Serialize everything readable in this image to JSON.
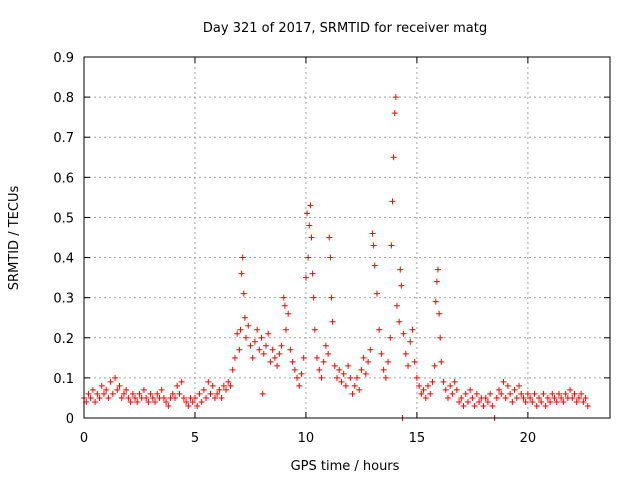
{
  "chart_data": {
    "type": "scatter",
    "title": "Day 321 of 2017, SRMTID for receiver matg",
    "xlabel": "GPS time / hours",
    "ylabel": "SRMTID / TECUs",
    "xlim": [
      0,
      23.7
    ],
    "ylim": [
      0,
      0.9
    ],
    "xticks": [
      0,
      5,
      10,
      15,
      20
    ],
    "xtick_labels": [
      "0",
      "5",
      "10",
      "15",
      "20"
    ],
    "yticks": [
      0,
      0.1,
      0.2,
      0.3,
      0.4,
      0.5,
      0.6,
      0.7,
      0.8,
      0.9
    ],
    "ytick_labels": [
      "0",
      "0.1",
      "0.2",
      "0.3",
      "0.4",
      "0.5",
      "0.6",
      "0.7",
      "0.8",
      "0.9"
    ],
    "grid": true,
    "marker": "+",
    "color": "#ff0000",
    "series": [
      {
        "name": "SRMTID",
        "points": [
          [
            0.0,
            0.05
          ],
          [
            0.1,
            0.04
          ],
          [
            0.2,
            0.06
          ],
          [
            0.3,
            0.05
          ],
          [
            0.4,
            0.07
          ],
          [
            0.5,
            0.04
          ],
          [
            0.6,
            0.06
          ],
          [
            0.7,
            0.05
          ],
          [
            0.8,
            0.08
          ],
          [
            0.9,
            0.06
          ],
          [
            1.0,
            0.07
          ],
          [
            1.1,
            0.05
          ],
          [
            1.2,
            0.09
          ],
          [
            1.3,
            0.06
          ],
          [
            1.4,
            0.1
          ],
          [
            1.5,
            0.07
          ],
          [
            1.6,
            0.08
          ],
          [
            1.7,
            0.05
          ],
          [
            1.8,
            0.06
          ],
          [
            1.9,
            0.07
          ],
          [
            2.0,
            0.05
          ],
          [
            2.1,
            0.04
          ],
          [
            2.2,
            0.06
          ],
          [
            2.3,
            0.05
          ],
          [
            2.4,
            0.04
          ],
          [
            2.5,
            0.06
          ],
          [
            2.6,
            0.05
          ],
          [
            2.7,
            0.07
          ],
          [
            2.8,
            0.05
          ],
          [
            2.9,
            0.04
          ],
          [
            3.0,
            0.06
          ],
          [
            3.1,
            0.05
          ],
          [
            3.2,
            0.04
          ],
          [
            3.3,
            0.06
          ],
          [
            3.4,
            0.05
          ],
          [
            3.5,
            0.07
          ],
          [
            3.6,
            0.05
          ],
          [
            3.7,
            0.04
          ],
          [
            3.8,
            0.03
          ],
          [
            3.9,
            0.05
          ],
          [
            4.0,
            0.06
          ],
          [
            4.1,
            0.05
          ],
          [
            4.2,
            0.08
          ],
          [
            4.3,
            0.06
          ],
          [
            4.4,
            0.09
          ],
          [
            4.5,
            0.05
          ],
          [
            4.6,
            0.04
          ],
          [
            4.7,
            0.03
          ],
          [
            4.8,
            0.05
          ],
          [
            4.9,
            0.04
          ],
          [
            5.0,
            0.05
          ],
          [
            5.1,
            0.03
          ],
          [
            5.2,
            0.06
          ],
          [
            5.3,
            0.04
          ],
          [
            5.4,
            0.07
          ],
          [
            5.5,
            0.05
          ],
          [
            5.6,
            0.09
          ],
          [
            5.7,
            0.06
          ],
          [
            5.8,
            0.08
          ],
          [
            5.9,
            0.05
          ],
          [
            6.0,
            0.06
          ],
          [
            6.1,
            0.07
          ],
          [
            6.2,
            0.05
          ],
          [
            6.3,
            0.08
          ],
          [
            6.4,
            0.07
          ],
          [
            6.5,
            0.09
          ],
          [
            6.6,
            0.08
          ],
          [
            6.7,
            0.12
          ],
          [
            6.8,
            0.15
          ],
          [
            6.9,
            0.21
          ],
          [
            7.0,
            0.17
          ],
          [
            7.05,
            0.22
          ],
          [
            7.1,
            0.36
          ],
          [
            7.15,
            0.4
          ],
          [
            7.2,
            0.31
          ],
          [
            7.25,
            0.25
          ],
          [
            7.3,
            0.2
          ],
          [
            7.4,
            0.23
          ],
          [
            7.5,
            0.18
          ],
          [
            7.6,
            0.15
          ],
          [
            7.7,
            0.19
          ],
          [
            7.8,
            0.22
          ],
          [
            7.9,
            0.17
          ],
          [
            8.0,
            0.2
          ],
          [
            8.05,
            0.06
          ],
          [
            8.1,
            0.16
          ],
          [
            8.2,
            0.18
          ],
          [
            8.3,
            0.21
          ],
          [
            8.4,
            0.14
          ],
          [
            8.5,
            0.17
          ],
          [
            8.6,
            0.15
          ],
          [
            8.7,
            0.13
          ],
          [
            8.8,
            0.16
          ],
          [
            8.9,
            0.18
          ],
          [
            9.0,
            0.3
          ],
          [
            9.05,
            0.28
          ],
          [
            9.1,
            0.22
          ],
          [
            9.2,
            0.26
          ],
          [
            9.3,
            0.17
          ],
          [
            9.4,
            0.14
          ],
          [
            9.5,
            0.12
          ],
          [
            9.6,
            0.1
          ],
          [
            9.7,
            0.08
          ],
          [
            9.8,
            0.11
          ],
          [
            9.9,
            0.15
          ],
          [
            10.0,
            0.35
          ],
          [
            10.05,
            0.51
          ],
          [
            10.1,
            0.4
          ],
          [
            10.15,
            0.48
          ],
          [
            10.2,
            0.53
          ],
          [
            10.25,
            0.45
          ],
          [
            10.3,
            0.36
          ],
          [
            10.35,
            0.3
          ],
          [
            10.4,
            0.22
          ],
          [
            10.5,
            0.15
          ],
          [
            10.6,
            0.12
          ],
          [
            10.7,
            0.1
          ],
          [
            10.8,
            0.14
          ],
          [
            10.9,
            0.18
          ],
          [
            11.0,
            0.16
          ],
          [
            11.05,
            0.45
          ],
          [
            11.1,
            0.4
          ],
          [
            11.15,
            0.3
          ],
          [
            11.2,
            0.24
          ],
          [
            11.3,
            0.13
          ],
          [
            11.4,
            0.1
          ],
          [
            11.5,
            0.12
          ],
          [
            11.6,
            0.09
          ],
          [
            11.7,
            0.11
          ],
          [
            11.8,
            0.08
          ],
          [
            11.9,
            0.13
          ],
          [
            12.0,
            0.1
          ],
          [
            12.1,
            0.06
          ],
          [
            12.2,
            0.08
          ],
          [
            12.3,
            0.1
          ],
          [
            12.4,
            0.07
          ],
          [
            12.5,
            0.12
          ],
          [
            12.6,
            0.15
          ],
          [
            12.7,
            0.11
          ],
          [
            12.8,
            0.14
          ],
          [
            12.9,
            0.17
          ],
          [
            13.0,
            0.46
          ],
          [
            13.05,
            0.43
          ],
          [
            13.1,
            0.38
          ],
          [
            13.2,
            0.31
          ],
          [
            13.3,
            0.22
          ],
          [
            13.4,
            0.16
          ],
          [
            13.5,
            0.12
          ],
          [
            13.6,
            0.1
          ],
          [
            13.7,
            0.14
          ],
          [
            13.8,
            0.2
          ],
          [
            13.85,
            0.43
          ],
          [
            13.9,
            0.54
          ],
          [
            13.95,
            0.65
          ],
          [
            14.0,
            0.76
          ],
          [
            14.05,
            0.8
          ],
          [
            14.1,
            0.28
          ],
          [
            14.2,
            0.24
          ],
          [
            14.25,
            0.37
          ],
          [
            14.3,
            0.33
          ],
          [
            14.35,
            0.0
          ],
          [
            14.4,
            0.21
          ],
          [
            14.5,
            0.16
          ],
          [
            14.6,
            0.13
          ],
          [
            14.7,
            0.19
          ],
          [
            14.8,
            0.22
          ],
          [
            14.9,
            0.14
          ],
          [
            15.0,
            0.1
          ],
          [
            15.1,
            0.08
          ],
          [
            15.2,
            0.06
          ],
          [
            15.3,
            0.07
          ],
          [
            15.4,
            0.05
          ],
          [
            15.5,
            0.08
          ],
          [
            15.6,
            0.06
          ],
          [
            15.7,
            0.09
          ],
          [
            15.8,
            0.13
          ],
          [
            15.85,
            0.29
          ],
          [
            15.9,
            0.34
          ],
          [
            15.95,
            0.37
          ],
          [
            16.0,
            0.26
          ],
          [
            16.05,
            0.2
          ],
          [
            16.1,
            0.14
          ],
          [
            16.2,
            0.09
          ],
          [
            16.3,
            0.07
          ],
          [
            16.4,
            0.05
          ],
          [
            16.5,
            0.08
          ],
          [
            16.6,
            0.06
          ],
          [
            16.7,
            0.09
          ],
          [
            16.8,
            0.07
          ],
          [
            16.9,
            0.04
          ],
          [
            17.0,
            0.05
          ],
          [
            17.1,
            0.03
          ],
          [
            17.2,
            0.06
          ],
          [
            17.3,
            0.04
          ],
          [
            17.4,
            0.07
          ],
          [
            17.5,
            0.05
          ],
          [
            17.6,
            0.03
          ],
          [
            17.7,
            0.06
          ],
          [
            17.8,
            0.04
          ],
          [
            17.9,
            0.05
          ],
          [
            18.0,
            0.03
          ],
          [
            18.1,
            0.05
          ],
          [
            18.2,
            0.04
          ],
          [
            18.3,
            0.06
          ],
          [
            18.4,
            0.03
          ],
          [
            18.5,
            0.0
          ],
          [
            18.6,
            0.05
          ],
          [
            18.7,
            0.07
          ],
          [
            18.8,
            0.06
          ],
          [
            18.9,
            0.09
          ],
          [
            19.0,
            0.05
          ],
          [
            19.1,
            0.08
          ],
          [
            19.2,
            0.06
          ],
          [
            19.3,
            0.04
          ],
          [
            19.4,
            0.07
          ],
          [
            19.5,
            0.05
          ],
          [
            19.6,
            0.08
          ],
          [
            19.7,
            0.06
          ],
          [
            19.8,
            0.05
          ],
          [
            19.9,
            0.04
          ],
          [
            20.0,
            0.06
          ],
          [
            20.1,
            0.05
          ],
          [
            20.2,
            0.04
          ],
          [
            20.3,
            0.06
          ],
          [
            20.4,
            0.03
          ],
          [
            20.5,
            0.05
          ],
          [
            20.6,
            0.04
          ],
          [
            20.7,
            0.06
          ],
          [
            20.8,
            0.03
          ],
          [
            20.9,
            0.05
          ],
          [
            21.0,
            0.04
          ],
          [
            21.1,
            0.06
          ],
          [
            21.2,
            0.05
          ],
          [
            21.3,
            0.04
          ],
          [
            21.4,
            0.06
          ],
          [
            21.5,
            0.05
          ],
          [
            21.6,
            0.04
          ],
          [
            21.7,
            0.06
          ],
          [
            21.8,
            0.05
          ],
          [
            21.9,
            0.07
          ],
          [
            22.0,
            0.05
          ],
          [
            22.1,
            0.06
          ],
          [
            22.2,
            0.04
          ],
          [
            22.3,
            0.05
          ],
          [
            22.4,
            0.06
          ],
          [
            22.5,
            0.04
          ],
          [
            22.6,
            0.05
          ],
          [
            22.7,
            0.03
          ]
        ]
      }
    ]
  }
}
